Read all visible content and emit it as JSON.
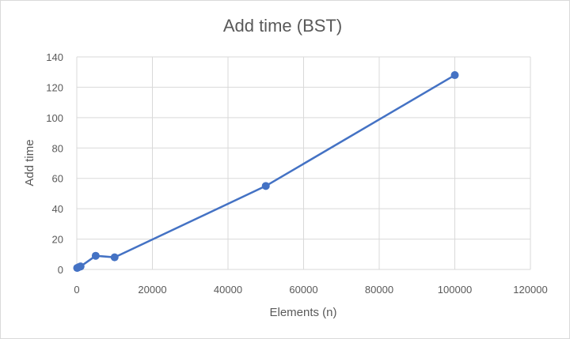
{
  "chart_data": {
    "type": "scatter",
    "title": "Add time (BST)",
    "xlabel": "Elements (n)",
    "ylabel": "Add time",
    "xlim": [
      0,
      120000
    ],
    "ylim": [
      0,
      140
    ],
    "x_ticks": [
      0,
      20000,
      40000,
      60000,
      80000,
      100000,
      120000
    ],
    "y_ticks": [
      0,
      20,
      40,
      60,
      80,
      100,
      120,
      140
    ],
    "grid": true,
    "legend": "none",
    "series": [
      {
        "color": "#4472c4",
        "style": "lines-and-markers",
        "points": [
          {
            "x": 100,
            "y": 1
          },
          {
            "x": 500,
            "y": 1.5
          },
          {
            "x": 1000,
            "y": 2
          },
          {
            "x": 5000,
            "y": 9
          },
          {
            "x": 10000,
            "y": 8
          },
          {
            "x": 50000,
            "y": 55
          },
          {
            "x": 100000,
            "y": 128
          }
        ]
      }
    ]
  }
}
